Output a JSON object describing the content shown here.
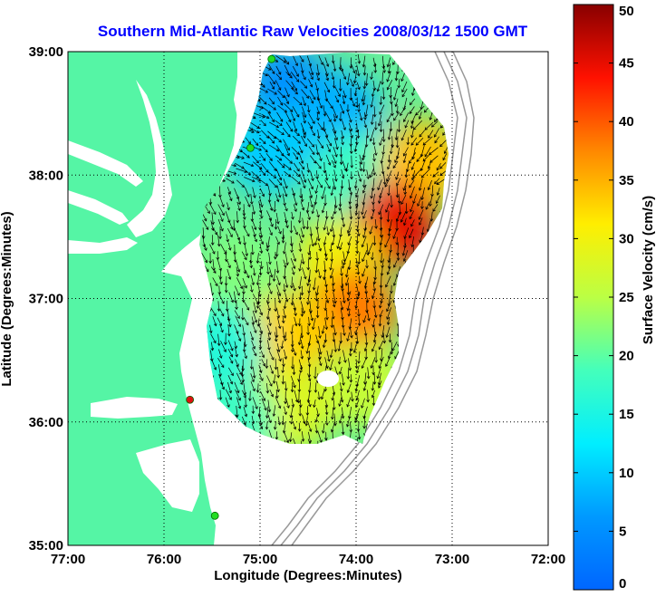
{
  "title": "Southern Mid-Atlantic Raw Velocities 2008/03/12 1500 GMT",
  "xlabel": "Longitude (Degrees:Minutes)",
  "ylabel": "Latitude (Degrees:Minutes)",
  "colorbar": {
    "label": "Surface Velocity (cm/s)",
    "ticks": [
      "0",
      "5",
      "10",
      "15",
      "20",
      "25",
      "30",
      "35",
      "40",
      "45",
      "50"
    ],
    "range": [
      0,
      50
    ],
    "colormap": "jet"
  },
  "colors": {
    "land": "#55f5a5",
    "water": "#ffffff",
    "title": "#0000ff",
    "site_active": "#22dd22",
    "site_alert": "#dd1111"
  },
  "chart_data": {
    "type": "map",
    "x_ticks": [
      "77:00",
      "76:00",
      "75:00",
      "74:00",
      "73:00",
      "72:00"
    ],
    "y_ticks": [
      "39:00",
      "38:00",
      "37:00",
      "36:00",
      "35:00"
    ],
    "xlim": [
      -77,
      -72
    ],
    "ylim": [
      35,
      39
    ],
    "grid": "dotted",
    "stations": [
      {
        "lon": -74.88,
        "lat": 38.94,
        "status": "active"
      },
      {
        "lon": -75.1,
        "lat": 38.22,
        "status": "active"
      },
      {
        "lon": -75.73,
        "lat": 36.18,
        "status": "alert"
      },
      {
        "lon": -75.47,
        "lat": 35.24,
        "status": "active"
      }
    ],
    "velocity_field": [
      {
        "lon": -74.7,
        "lat": 38.7,
        "speed": 5
      },
      {
        "lon": -74.2,
        "lat": 38.5,
        "speed": 8
      },
      {
        "lon": -74.9,
        "lat": 38.2,
        "speed": 10
      },
      {
        "lon": -74.0,
        "lat": 38.0,
        "speed": 18
      },
      {
        "lon": -73.3,
        "lat": 38.1,
        "speed": 34
      },
      {
        "lon": -73.6,
        "lat": 37.6,
        "speed": 45
      },
      {
        "lon": -74.2,
        "lat": 37.3,
        "speed": 30
      },
      {
        "lon": -75.2,
        "lat": 37.2,
        "speed": 22
      },
      {
        "lon": -74.0,
        "lat": 36.9,
        "speed": 38
      },
      {
        "lon": -74.7,
        "lat": 36.7,
        "speed": 33
      },
      {
        "lon": -75.4,
        "lat": 36.6,
        "speed": 16
      },
      {
        "lon": -73.9,
        "lat": 36.3,
        "speed": 26
      },
      {
        "lon": -74.7,
        "lat": 36.1,
        "speed": 28
      },
      {
        "lon": -75.3,
        "lat": 36.0,
        "speed": 18
      }
    ]
  }
}
